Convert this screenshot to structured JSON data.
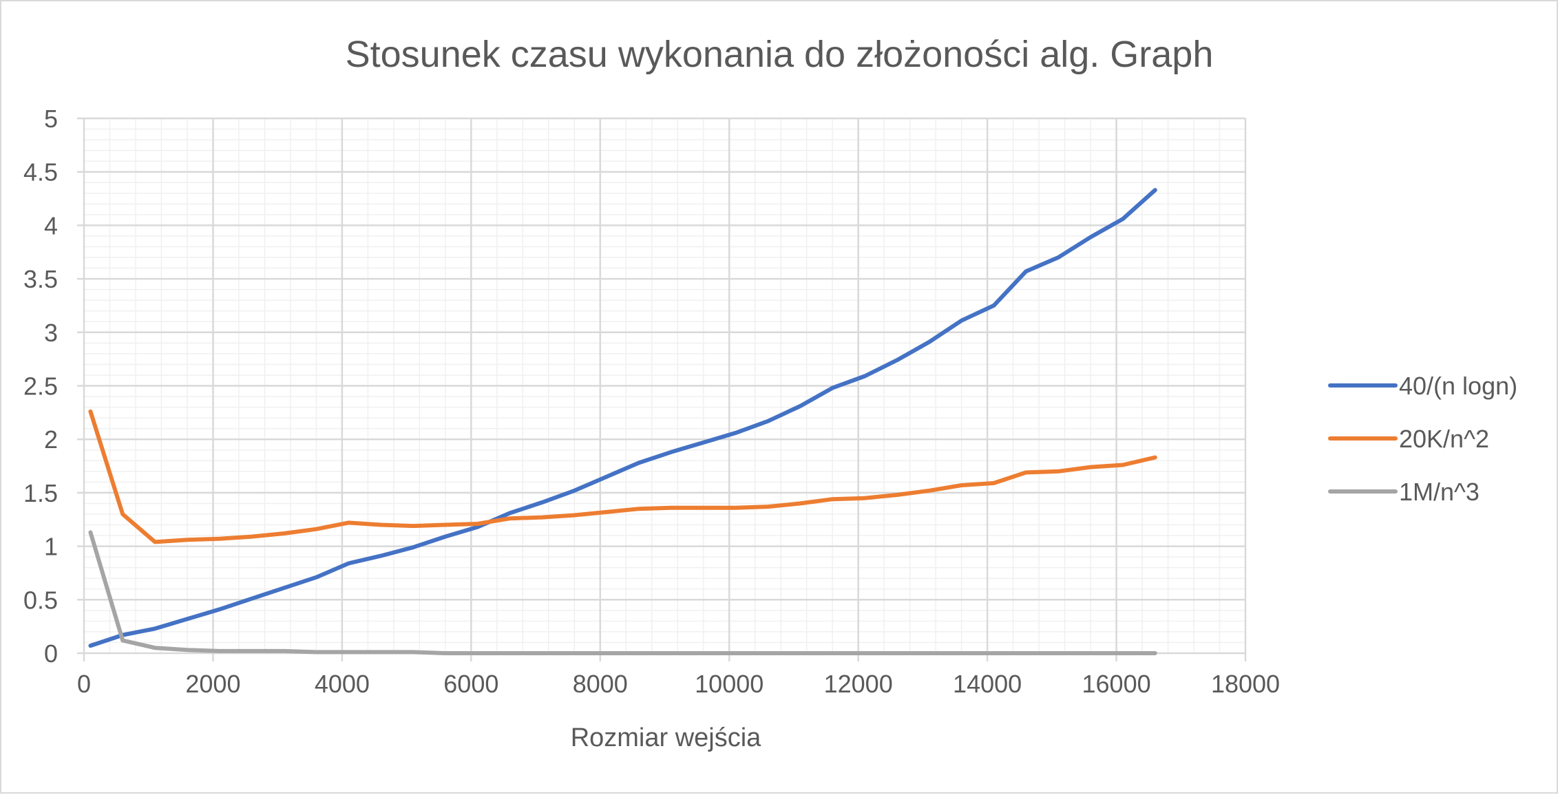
{
  "chart_data": {
    "type": "line",
    "title": "Stosunek czasu wykonania do złożoności alg. Graph",
    "xlabel": "Rozmiar wejścia",
    "ylabel": "",
    "xlim": [
      0,
      18000
    ],
    "ylim": [
      0,
      5
    ],
    "x_ticks": [
      0,
      2000,
      4000,
      6000,
      8000,
      10000,
      12000,
      14000,
      16000,
      18000
    ],
    "y_ticks": [
      0,
      0.5,
      1,
      1.5,
      2,
      2.5,
      3,
      3.5,
      4,
      4.5,
      5
    ],
    "grid": true,
    "legend_position": "right",
    "x": [
      100,
      600,
      1100,
      1600,
      2100,
      2600,
      3100,
      3600,
      4100,
      4600,
      5100,
      5600,
      6100,
      6600,
      7100,
      7600,
      8100,
      8600,
      9100,
      9600,
      10100,
      10600,
      11100,
      11600,
      12100,
      12600,
      13100,
      13600,
      14100,
      14600,
      15100,
      15600,
      16100,
      16600
    ],
    "series": [
      {
        "name": "40/(n logn)",
        "color": "#4472c4",
        "values": [
          0.07,
          0.17,
          0.23,
          0.32,
          0.41,
          0.51,
          0.61,
          0.71,
          0.84,
          0.91,
          0.99,
          1.09,
          1.18,
          1.31,
          1.41,
          1.52,
          1.65,
          1.78,
          1.88,
          1.97,
          2.06,
          2.17,
          2.31,
          2.48,
          2.59,
          2.74,
          2.91,
          3.11,
          3.25,
          3.57,
          3.7,
          3.89,
          4.06,
          4.33
        ]
      },
      {
        "name": "20K/n^2",
        "color": "#ed7d31",
        "values": [
          2.26,
          1.3,
          1.04,
          1.06,
          1.07,
          1.09,
          1.12,
          1.16,
          1.22,
          1.2,
          1.19,
          1.2,
          1.21,
          1.26,
          1.27,
          1.29,
          1.32,
          1.35,
          1.36,
          1.36,
          1.36,
          1.37,
          1.4,
          1.44,
          1.45,
          1.48,
          1.52,
          1.57,
          1.59,
          1.69,
          1.7,
          1.74,
          1.76,
          1.83
        ]
      },
      {
        "name": "1M/n^3",
        "color": "#a5a5a5",
        "values": [
          1.13,
          0.12,
          0.05,
          0.03,
          0.02,
          0.02,
          0.02,
          0.01,
          0.01,
          0.01,
          0.01,
          0.0,
          0.0,
          0.0,
          0.0,
          0.0,
          0.0,
          0.0,
          0.0,
          0.0,
          0.0,
          0.0,
          0.0,
          0.0,
          0.0,
          0.0,
          0.0,
          0.0,
          0.0,
          0.0,
          0.0,
          0.0,
          0.0,
          0.0
        ]
      }
    ]
  }
}
